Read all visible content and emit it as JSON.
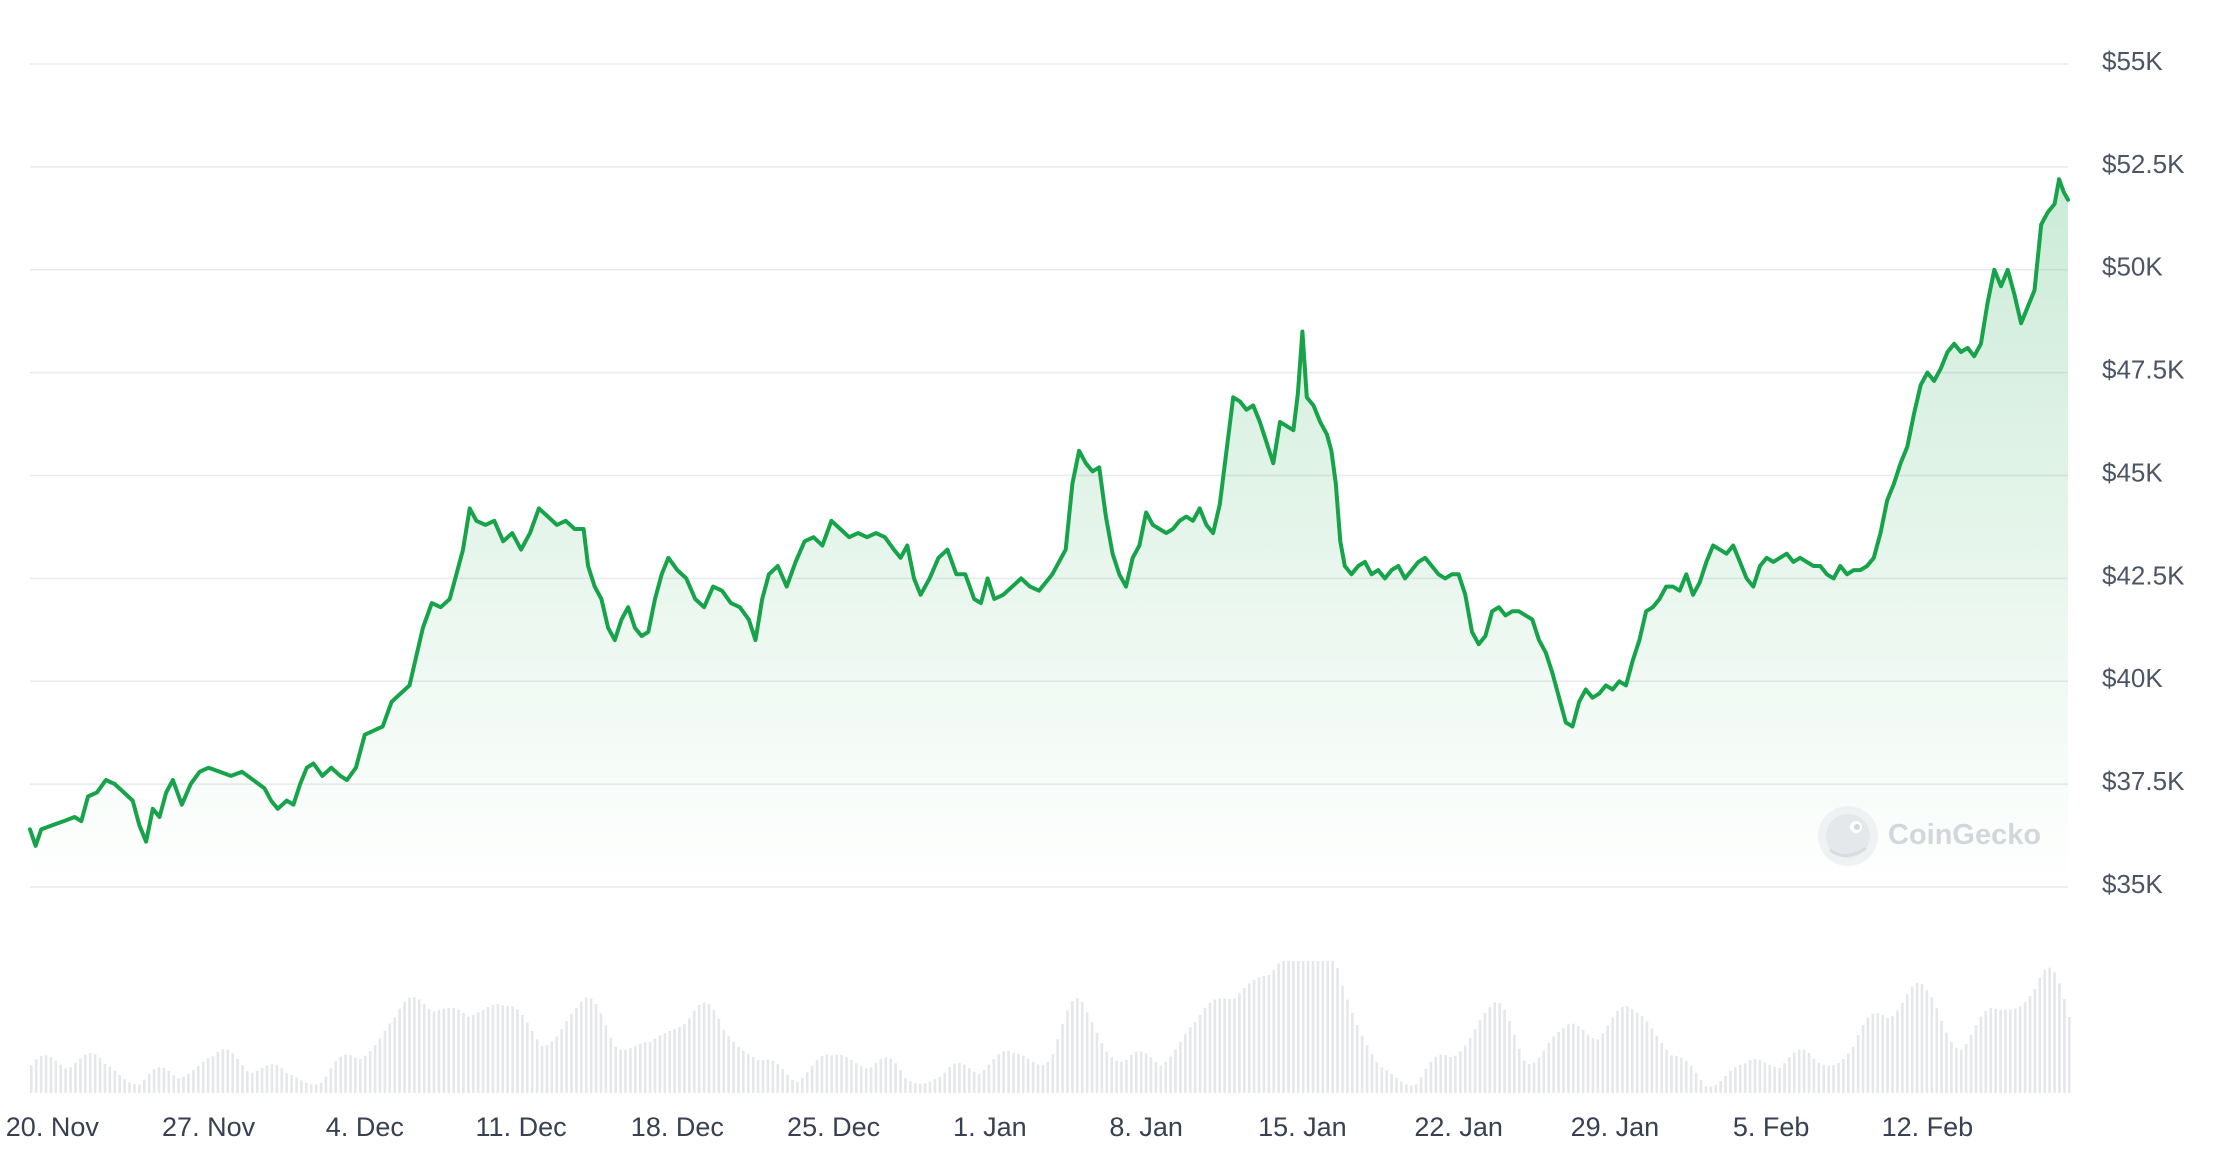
{
  "chart_data": {
    "type": "area",
    "title": "",
    "xlabel": "",
    "ylabel": "",
    "y_axis_position": "right",
    "grid": true,
    "ylim": [
      35000,
      55000
    ],
    "y_ticks": [
      {
        "value": 35000,
        "label": "$35K"
      },
      {
        "value": 37500,
        "label": "$37.5K"
      },
      {
        "value": 40000,
        "label": "$40K"
      },
      {
        "value": 42500,
        "label": "$42.5K"
      },
      {
        "value": 45000,
        "label": "$45K"
      },
      {
        "value": 47500,
        "label": "$47.5K"
      },
      {
        "value": 50000,
        "label": "$50K"
      },
      {
        "value": 52500,
        "label": "$52.5K"
      },
      {
        "value": 55000,
        "label": "$55K"
      }
    ],
    "x_ticks": [
      {
        "day": 1,
        "label": "20. Nov"
      },
      {
        "day": 8,
        "label": "27. Nov"
      },
      {
        "day": 15,
        "label": "4. Dec"
      },
      {
        "day": 22,
        "label": "11. Dec"
      },
      {
        "day": 29,
        "label": "18. Dec"
      },
      {
        "day": 36,
        "label": "25. Dec"
      },
      {
        "day": 43,
        "label": "1. Jan"
      },
      {
        "day": 50,
        "label": "8. Jan"
      },
      {
        "day": 57,
        "label": "15. Jan"
      },
      {
        "day": 64,
        "label": "22. Jan"
      },
      {
        "day": 71,
        "label": "29. Jan"
      },
      {
        "day": 78,
        "label": "5. Feb"
      },
      {
        "day": 85,
        "label": "12. Feb"
      }
    ],
    "xlim": [
      0,
      91.3
    ],
    "line_color": "#16a34a",
    "fill_color": "#16a34a",
    "volume_color": "#e5e7eb",
    "series": [
      {
        "values": [
          [
            0,
            36400
          ],
          [
            0.25,
            36000
          ],
          [
            0.5,
            36400
          ],
          [
            1,
            36500
          ],
          [
            1.5,
            36600
          ],
          [
            2,
            36700
          ],
          [
            2.3,
            36600
          ],
          [
            2.6,
            37200
          ],
          [
            3,
            37300
          ],
          [
            3.4,
            37600
          ],
          [
            3.8,
            37500
          ],
          [
            4.2,
            37300
          ],
          [
            4.6,
            37100
          ],
          [
            4.9,
            36500
          ],
          [
            5.2,
            36100
          ],
          [
            5.5,
            36900
          ],
          [
            5.8,
            36700
          ],
          [
            6.1,
            37300
          ],
          [
            6.4,
            37600
          ],
          [
            6.8,
            37000
          ],
          [
            7.2,
            37500
          ],
          [
            7.6,
            37800
          ],
          [
            8,
            37900
          ],
          [
            8.5,
            37800
          ],
          [
            9,
            37700
          ],
          [
            9.5,
            37800
          ],
          [
            10,
            37600
          ],
          [
            10.5,
            37400
          ],
          [
            10.8,
            37100
          ],
          [
            11.1,
            36900
          ],
          [
            11.5,
            37100
          ],
          [
            11.8,
            37000
          ],
          [
            12.1,
            37500
          ],
          [
            12.4,
            37900
          ],
          [
            12.7,
            38000
          ],
          [
            13.1,
            37700
          ],
          [
            13.5,
            37900
          ],
          [
            13.9,
            37700
          ],
          [
            14.2,
            37600
          ],
          [
            14.6,
            37900
          ],
          [
            15,
            38700
          ],
          [
            15.4,
            38800
          ],
          [
            15.8,
            38900
          ],
          [
            16.2,
            39500
          ],
          [
            16.6,
            39700
          ],
          [
            17,
            39900
          ],
          [
            17.3,
            40600
          ],
          [
            17.6,
            41300
          ],
          [
            18,
            41900
          ],
          [
            18.4,
            41800
          ],
          [
            18.8,
            42000
          ],
          [
            19.1,
            42600
          ],
          [
            19.4,
            43200
          ],
          [
            19.7,
            44200
          ],
          [
            20,
            43900
          ],
          [
            20.4,
            43800
          ],
          [
            20.8,
            43900
          ],
          [
            21.2,
            43400
          ],
          [
            21.6,
            43600
          ],
          [
            22,
            43200
          ],
          [
            22.4,
            43600
          ],
          [
            22.8,
            44200
          ],
          [
            23.2,
            44000
          ],
          [
            23.6,
            43800
          ],
          [
            24,
            43900
          ],
          [
            24.4,
            43700
          ],
          [
            24.8,
            43700
          ],
          [
            25,
            42800
          ],
          [
            25.3,
            42300
          ],
          [
            25.6,
            42000
          ],
          [
            25.9,
            41300
          ],
          [
            26.2,
            41000
          ],
          [
            26.5,
            41500
          ],
          [
            26.8,
            41800
          ],
          [
            27.1,
            41300
          ],
          [
            27.4,
            41100
          ],
          [
            27.7,
            41200
          ],
          [
            28,
            42000
          ],
          [
            28.3,
            42600
          ],
          [
            28.6,
            43000
          ],
          [
            29,
            42700
          ],
          [
            29.4,
            42500
          ],
          [
            29.8,
            42000
          ],
          [
            30.2,
            41800
          ],
          [
            30.6,
            42300
          ],
          [
            31,
            42200
          ],
          [
            31.4,
            41900
          ],
          [
            31.8,
            41800
          ],
          [
            32.2,
            41500
          ],
          [
            32.5,
            41000
          ],
          [
            32.8,
            42000
          ],
          [
            33.1,
            42600
          ],
          [
            33.5,
            42800
          ],
          [
            33.9,
            42300
          ],
          [
            34.3,
            42900
          ],
          [
            34.7,
            43400
          ],
          [
            35.1,
            43500
          ],
          [
            35.5,
            43300
          ],
          [
            35.9,
            43900
          ],
          [
            36.3,
            43700
          ],
          [
            36.7,
            43500
          ],
          [
            37.1,
            43600
          ],
          [
            37.5,
            43500
          ],
          [
            37.9,
            43600
          ],
          [
            38.3,
            43500
          ],
          [
            38.7,
            43200
          ],
          [
            39,
            43000
          ],
          [
            39.3,
            43300
          ],
          [
            39.6,
            42500
          ],
          [
            39.9,
            42100
          ],
          [
            40.3,
            42500
          ],
          [
            40.7,
            43000
          ],
          [
            41.1,
            43200
          ],
          [
            41.5,
            42600
          ],
          [
            41.9,
            42600
          ],
          [
            42.3,
            42000
          ],
          [
            42.6,
            41900
          ],
          [
            42.9,
            42500
          ],
          [
            43.2,
            42000
          ],
          [
            43.6,
            42100
          ],
          [
            44,
            42300
          ],
          [
            44.4,
            42500
          ],
          [
            44.8,
            42300
          ],
          [
            45.2,
            42200
          ],
          [
            45.5,
            42400
          ],
          [
            45.8,
            42600
          ],
          [
            46.1,
            42900
          ],
          [
            46.4,
            43200
          ],
          [
            46.7,
            44800
          ],
          [
            47,
            45600
          ],
          [
            47.3,
            45300
          ],
          [
            47.6,
            45100
          ],
          [
            47.9,
            45200
          ],
          [
            48.2,
            44000
          ],
          [
            48.5,
            43100
          ],
          [
            48.8,
            42600
          ],
          [
            49.1,
            42300
          ],
          [
            49.4,
            43000
          ],
          [
            49.7,
            43300
          ],
          [
            50,
            44100
          ],
          [
            50.3,
            43800
          ],
          [
            50.6,
            43700
          ],
          [
            50.9,
            43600
          ],
          [
            51.2,
            43700
          ],
          [
            51.5,
            43900
          ],
          [
            51.8,
            44000
          ],
          [
            52.1,
            43900
          ],
          [
            52.4,
            44200
          ],
          [
            52.7,
            43800
          ],
          [
            53,
            43600
          ],
          [
            53.3,
            44300
          ],
          [
            53.6,
            45600
          ],
          [
            53.9,
            46900
          ],
          [
            54.2,
            46800
          ],
          [
            54.5,
            46600
          ],
          [
            54.8,
            46700
          ],
          [
            55.1,
            46300
          ],
          [
            55.4,
            45800
          ],
          [
            55.7,
            45300
          ],
          [
            56,
            46300
          ],
          [
            56.3,
            46200
          ],
          [
            56.6,
            46100
          ],
          [
            56.8,
            47000
          ],
          [
            57,
            48500
          ],
          [
            57.2,
            46900
          ],
          [
            57.5,
            46700
          ],
          [
            57.8,
            46300
          ],
          [
            58.1,
            46000
          ],
          [
            58.3,
            45600
          ],
          [
            58.5,
            44800
          ],
          [
            58.7,
            43400
          ],
          [
            58.9,
            42800
          ],
          [
            59.2,
            42600
          ],
          [
            59.5,
            42800
          ],
          [
            59.8,
            42900
          ],
          [
            60.1,
            42600
          ],
          [
            60.4,
            42700
          ],
          [
            60.7,
            42500
          ],
          [
            61,
            42700
          ],
          [
            61.3,
            42800
          ],
          [
            61.6,
            42500
          ],
          [
            61.9,
            42700
          ],
          [
            62.2,
            42900
          ],
          [
            62.5,
            43000
          ],
          [
            62.8,
            42800
          ],
          [
            63.1,
            42600
          ],
          [
            63.4,
            42500
          ],
          [
            63.7,
            42600
          ],
          [
            64,
            42600
          ],
          [
            64.3,
            42100
          ],
          [
            64.6,
            41200
          ],
          [
            64.9,
            40900
          ],
          [
            65.2,
            41100
          ],
          [
            65.5,
            41700
          ],
          [
            65.8,
            41800
          ],
          [
            66.1,
            41600
          ],
          [
            66.4,
            41700
          ],
          [
            66.7,
            41700
          ],
          [
            67,
            41600
          ],
          [
            67.3,
            41500
          ],
          [
            67.6,
            41000
          ],
          [
            67.9,
            40700
          ],
          [
            68.2,
            40200
          ],
          [
            68.5,
            39600
          ],
          [
            68.8,
            39000
          ],
          [
            69.1,
            38900
          ],
          [
            69.4,
            39500
          ],
          [
            69.7,
            39800
          ],
          [
            70,
            39600
          ],
          [
            70.3,
            39700
          ],
          [
            70.6,
            39900
          ],
          [
            70.9,
            39800
          ],
          [
            71.2,
            40000
          ],
          [
            71.5,
            39900
          ],
          [
            71.8,
            40500
          ],
          [
            72.1,
            41000
          ],
          [
            72.4,
            41700
          ],
          [
            72.7,
            41800
          ],
          [
            73,
            42000
          ],
          [
            73.3,
            42300
          ],
          [
            73.6,
            42300
          ],
          [
            73.9,
            42200
          ],
          [
            74.2,
            42600
          ],
          [
            74.5,
            42100
          ],
          [
            74.8,
            42400
          ],
          [
            75.1,
            42900
          ],
          [
            75.4,
            43300
          ],
          [
            75.7,
            43200
          ],
          [
            76,
            43100
          ],
          [
            76.3,
            43300
          ],
          [
            76.6,
            42900
          ],
          [
            76.9,
            42500
          ],
          [
            77.2,
            42300
          ],
          [
            77.5,
            42800
          ],
          [
            77.8,
            43000
          ],
          [
            78.1,
            42900
          ],
          [
            78.4,
            43000
          ],
          [
            78.7,
            43100
          ],
          [
            79,
            42900
          ],
          [
            79.3,
            43000
          ],
          [
            79.6,
            42900
          ],
          [
            79.9,
            42800
          ],
          [
            80.2,
            42800
          ],
          [
            80.5,
            42600
          ],
          [
            80.8,
            42500
          ],
          [
            81.1,
            42800
          ],
          [
            81.4,
            42600
          ],
          [
            81.7,
            42700
          ],
          [
            82,
            42700
          ],
          [
            82.3,
            42800
          ],
          [
            82.6,
            43000
          ],
          [
            82.9,
            43600
          ],
          [
            83.2,
            44400
          ],
          [
            83.5,
            44800
          ],
          [
            83.8,
            45300
          ],
          [
            84.1,
            45700
          ],
          [
            84.4,
            46500
          ],
          [
            84.7,
            47200
          ],
          [
            85,
            47500
          ],
          [
            85.3,
            47300
          ],
          [
            85.6,
            47600
          ],
          [
            85.9,
            48000
          ],
          [
            86.2,
            48200
          ],
          [
            86.5,
            48000
          ],
          [
            86.8,
            48100
          ],
          [
            87.1,
            47900
          ],
          [
            87.4,
            48200
          ],
          [
            87.7,
            49200
          ],
          [
            88,
            50000
          ],
          [
            88.3,
            49600
          ],
          [
            88.6,
            50000
          ],
          [
            88.9,
            49400
          ],
          [
            89.2,
            48700
          ],
          [
            89.5,
            49100
          ],
          [
            89.8,
            49500
          ],
          [
            90.1,
            51100
          ],
          [
            90.4,
            51400
          ],
          [
            90.7,
            51600
          ],
          [
            90.9,
            52200
          ],
          [
            91.1,
            51900
          ],
          [
            91.3,
            51700
          ]
        ]
      }
    ]
  },
  "watermark": {
    "text": "CoinGecko"
  }
}
